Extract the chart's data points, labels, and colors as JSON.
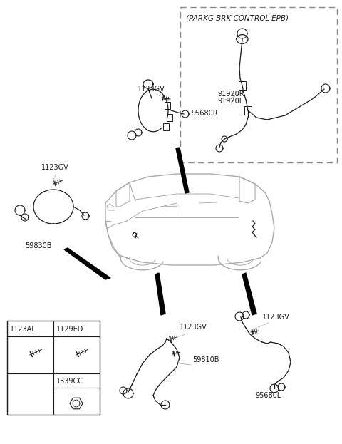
{
  "bg_color": "#ffffff",
  "line_color": "#1a1a1a",
  "gray_color": "#aaaaaa",
  "fig_width": 4.8,
  "fig_height": 6.23,
  "dpi": 100,
  "labels": {
    "parkg_box": "(PARKG BRK CONTROL-EPB)",
    "l91920R": "91920R",
    "l91920L": "91920L",
    "l1123GV_topleft": "1123GV",
    "l1123GV_topright": "1123GV",
    "l95680R": "95680R",
    "l59830B": "59830B",
    "l1123GV_botleft": "1123GV",
    "l59810B": "59810B",
    "l1123GV_botright": "1123GV",
    "l95680L": "95680L",
    "l1123AL": "1123AL",
    "l1129ED": "1129ED",
    "l1339CC": "1339CC"
  }
}
